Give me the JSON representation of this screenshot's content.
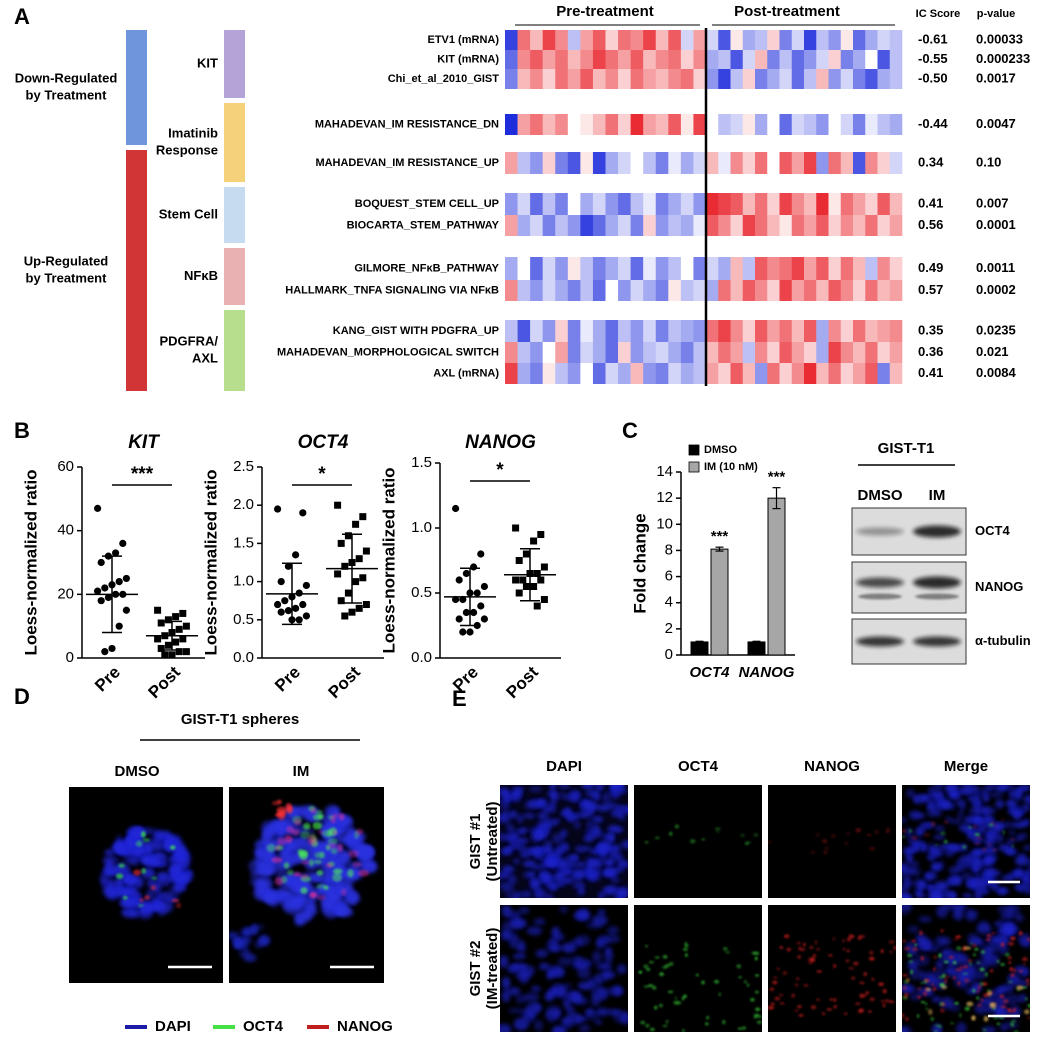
{
  "panel_labels": [
    "A",
    "B",
    "C",
    "D",
    "E"
  ],
  "heatmap": {
    "groups": [
      {
        "label": [
          "Down-Regulated",
          "by Treatment"
        ],
        "color": "#6f95dc"
      },
      {
        "label": [
          "Up-Regulated",
          "by Treatment"
        ],
        "color": "#d23535"
      }
    ],
    "categories": [
      {
        "label": [
          "KIT"
        ],
        "color": "#b3a3d6"
      },
      {
        "label": [
          "Imatinib",
          "Response"
        ],
        "color": "#f5d27a"
      },
      {
        "label": [
          "Stem Cell"
        ],
        "color": "#c6dbf0"
      },
      {
        "label": [
          "NFκB"
        ],
        "color": "#e9b1b1"
      },
      {
        "label": [
          "PDGFRA/",
          "AXL"
        ],
        "color": "#b7de8c"
      }
    ],
    "columns": [
      "Pre-treatment",
      "Post-treatment"
    ],
    "headers": [
      "IC Score",
      "p-value"
    ],
    "rows": [
      {
        "name": "ETV1 (mRNA)",
        "ic": "-0.61",
        "p": "0.00033",
        "values": [
          -0.9,
          0.6,
          0.3,
          0.8,
          0.5,
          -0.3,
          0.4,
          0.7,
          0.2,
          0.6,
          0.5,
          0.8,
          0.3,
          0.7,
          -0.2,
          0.4,
          -0.2,
          -0.8,
          0.1,
          -0.4,
          -0.3,
          0.2,
          -0.6,
          -0.2,
          -0.9,
          -0.3,
          -0.5,
          0.1,
          -0.7,
          -0.4,
          -0.2,
          -0.3
        ]
      },
      {
        "name": "KIT (mRNA)",
        "ic": "-0.55",
        "p": "0.000233",
        "values": [
          -0.7,
          0.5,
          0.7,
          0.4,
          0.6,
          0.3,
          0.5,
          0.8,
          0.6,
          0.4,
          0.7,
          0.3,
          0.5,
          0.6,
          0.2,
          0.5,
          -0.4,
          -0.3,
          -0.8,
          -0.2,
          0.3,
          -0.6,
          -0.3,
          -0.7,
          -0.5,
          -0.2,
          0.2,
          -0.6,
          -0.4,
          0.0,
          -0.8,
          -0.3
        ]
      },
      {
        "name": "Chi_et_al_2010_GIST",
        "ic": "-0.50",
        "p": "0.0017",
        "values": [
          -0.6,
          0.3,
          0.5,
          0.2,
          0.6,
          0.4,
          0.7,
          0.3,
          0.5,
          0.2,
          0.6,
          0.4,
          0.3,
          0.5,
          0.6,
          0.2,
          -0.5,
          -0.9,
          -0.3,
          0.2,
          -0.6,
          -0.4,
          -0.2,
          -0.7,
          -0.3,
          0.3,
          -0.5,
          -0.2,
          -0.6,
          -0.8,
          -0.4,
          -0.3
        ]
      },
      {
        "name": "MAHADEVAN_IM RESISTANCE_DN",
        "ic": "-0.44",
        "p": "0.0047",
        "values": [
          -1.0,
          0.4,
          0.6,
          0.3,
          0.5,
          0.0,
          0.1,
          0.3,
          0.6,
          0.2,
          0.9,
          0.4,
          0.3,
          0.7,
          0.1,
          0.8,
          0.0,
          -0.3,
          -0.2,
          0.1,
          -0.4,
          0.0,
          -0.7,
          -0.2,
          -0.3,
          -0.5,
          0.0,
          -0.2,
          -0.6,
          -0.1,
          -0.3,
          -0.4
        ]
      },
      {
        "name": "MAHADEVAN_IM RESISTANCE_UP",
        "ic": "0.34",
        "p": "0.10",
        "values": [
          0.4,
          -0.3,
          -0.5,
          0.2,
          -0.6,
          -0.8,
          0.1,
          -0.9,
          -0.4,
          -0.2,
          0.0,
          -0.3,
          -0.6,
          -0.1,
          -0.4,
          -0.2,
          0.3,
          -0.1,
          0.5,
          0.2,
          0.6,
          0.0,
          0.7,
          0.4,
          0.8,
          -0.5,
          0.6,
          0.3,
          -0.8,
          0.5,
          0.2,
          -0.2
        ]
      },
      {
        "name": "BOQUEST_STEM CELL_UP",
        "ic": "0.41",
        "p": "0.007",
        "values": [
          -0.5,
          -0.2,
          -0.7,
          -0.3,
          -0.6,
          0.0,
          -0.4,
          -0.2,
          -0.5,
          -0.7,
          -0.3,
          -0.1,
          -0.6,
          -0.4,
          -0.2,
          -0.5,
          0.9,
          0.8,
          0.7,
          0.3,
          0.6,
          0.2,
          0.8,
          0.5,
          0.3,
          0.9,
          0.1,
          0.6,
          0.4,
          0.2,
          0.7,
          0.3
        ]
      },
      {
        "name": "BIOCARTA_STEM_PATHWAY",
        "ic": "0.56",
        "p": "0.0001",
        "values": [
          0.4,
          -0.4,
          -0.2,
          -0.6,
          -0.3,
          -0.5,
          -0.9,
          -0.7,
          -0.4,
          -0.2,
          -0.6,
          0.2,
          -0.5,
          -0.3,
          -0.4,
          -0.1,
          0.7,
          0.5,
          0.2,
          0.8,
          0.6,
          0.3,
          0.1,
          0.6,
          0.4,
          0.7,
          0.2,
          0.5,
          0.3,
          0.6,
          0.2,
          0.4
        ]
      },
      {
        "name": "GILMORE_NFκB_PATHWAY",
        "ic": "0.49",
        "p": "0.0011",
        "values": [
          -0.4,
          0.0,
          -0.7,
          -0.2,
          -0.5,
          0.1,
          -0.3,
          -0.6,
          -0.4,
          -0.2,
          -0.7,
          -0.1,
          -0.5,
          -0.3,
          0.0,
          -0.6,
          -0.2,
          -0.4,
          0.3,
          -0.3,
          0.7,
          0.5,
          0.6,
          0.8,
          0.4,
          0.7,
          0.2,
          0.6,
          0.3,
          -0.3,
          0.5,
          0.2
        ]
      },
      {
        "name": "HALLMARK_TNFA SIGNALING VIA NFκB",
        "ic": "0.57",
        "p": "0.0002",
        "values": [
          0.5,
          -0.3,
          -0.5,
          -0.2,
          -0.4,
          -0.6,
          -0.3,
          -0.7,
          0.0,
          -0.5,
          -0.2,
          -0.4,
          -0.6,
          0.1,
          -0.3,
          -0.2,
          -0.4,
          0.6,
          0.3,
          0.7,
          0.5,
          0.2,
          0.8,
          0.4,
          0.6,
          0.3,
          0.7,
          0.5,
          0.2,
          0.6,
          0.3,
          0.4
        ]
      },
      {
        "name": "KANG_GIST WITH PDGFRA_UP",
        "ic": "0.35",
        "p": "0.0235",
        "values": [
          -0.3,
          -0.8,
          -0.2,
          -0.5,
          0.2,
          -0.6,
          -0.1,
          -0.4,
          -0.7,
          -0.3,
          -0.5,
          -0.2,
          -0.6,
          -0.3,
          -0.4,
          -0.5,
          0.6,
          0.8,
          0.5,
          0.2,
          0.7,
          0.4,
          0.6,
          0.3,
          0.7,
          -0.4,
          0.5,
          0.2,
          0.6,
          0.3,
          0.4,
          0.5
        ]
      },
      {
        "name": "MAHADEVAN_MORPHOLOGICAL SWITCH",
        "ic": "0.36",
        "p": "0.021",
        "values": [
          0.5,
          -0.3,
          -0.5,
          0.0,
          0.4,
          -0.6,
          -0.2,
          -0.4,
          -0.7,
          0.2,
          -0.5,
          -0.3,
          -0.2,
          -0.4,
          -0.6,
          -0.3,
          0.3,
          0.6,
          0.4,
          -0.3,
          0.5,
          0.2,
          0.7,
          0.4,
          0.2,
          -0.4,
          0.8,
          0.5,
          0.3,
          0.6,
          0.2,
          0.4
        ]
      },
      {
        "name": "AXL (mRNA)",
        "ic": "0.41",
        "p": "0.0084",
        "values": [
          0.8,
          -0.4,
          -0.6,
          0.1,
          -0.3,
          -0.5,
          0.0,
          -0.7,
          -0.2,
          -0.4,
          0.3,
          -0.5,
          -0.6,
          -0.2,
          -0.4,
          -0.3,
          0.4,
          0.2,
          0.7,
          0.3,
          -0.5,
          0.6,
          0.2,
          0.5,
          0.9,
          0.3,
          0.6,
          0.2,
          0.4,
          0.7,
          -0.6,
          0.3
        ]
      }
    ]
  },
  "chart_data": [
    {
      "type": "dot",
      "title": "KIT",
      "ylabel": "Loess-normalized ratio",
      "ylim": [
        0,
        60
      ],
      "yticks": [
        0,
        20,
        40,
        60
      ],
      "significance": "***",
      "series": [
        {
          "name": "Pre",
          "marker": "circle",
          "color": "#000000",
          "values": [
            47,
            36,
            33,
            32,
            30,
            25,
            24,
            23,
            22,
            21,
            20,
            20,
            19,
            18,
            15,
            10,
            3,
            2
          ],
          "mean": 20,
          "sd": 12
        },
        {
          "name": "Post",
          "marker": "square",
          "color": "#000000",
          "values": [
            15,
            14,
            13,
            12,
            11,
            10,
            9,
            8,
            7,
            6,
            6,
            5,
            4,
            3,
            2,
            2,
            1,
            1
          ],
          "mean": 7,
          "sd": 4.5
        }
      ]
    },
    {
      "type": "dot",
      "title": "OCT4",
      "ylabel": "Loess-normalized ratio",
      "ylim": [
        0,
        2.5
      ],
      "yticks": [
        {
          "value": 0,
          "label": "0.0"
        },
        0.5,
        {
          "value": 1,
          "label": "1.0"
        },
        1.5,
        {
          "value": 2,
          "label": "2.0"
        },
        2.5
      ],
      "significance": "*",
      "series": [
        {
          "name": "Pre",
          "marker": "circle",
          "color": "#000000",
          "values": [
            1.95,
            1.9,
            1.35,
            1.2,
            1.0,
            0.95,
            0.85,
            0.8,
            0.75,
            0.7,
            0.7,
            0.65,
            0.62,
            0.6,
            0.55,
            0.5,
            0.5
          ],
          "mean": 0.84,
          "sd": 0.4
        },
        {
          "name": "Post",
          "marker": "square",
          "color": "#000000",
          "values": [
            2.0,
            1.85,
            1.75,
            1.6,
            1.5,
            1.4,
            1.3,
            1.25,
            1.2,
            1.1,
            1.05,
            1.0,
            0.85,
            0.75,
            0.7,
            0.65,
            0.6,
            0.55
          ],
          "mean": 1.17,
          "sd": 0.45
        }
      ]
    },
    {
      "type": "dot",
      "title": "NANOG",
      "ylabel": "Loess-normalized ratio",
      "ylim": [
        0,
        1.5
      ],
      "yticks": [
        {
          "value": 0,
          "label": "0.0"
        },
        0.5,
        {
          "value": 1,
          "label": "1.0"
        },
        1.5
      ],
      "significance": "*",
      "series": [
        {
          "name": "Pre",
          "marker": "circle",
          "color": "#000000",
          "values": [
            1.15,
            0.8,
            0.7,
            0.65,
            0.6,
            0.55,
            0.5,
            0.5,
            0.45,
            0.45,
            0.4,
            0.35,
            0.35,
            0.3,
            0.3,
            0.25,
            0.2,
            0.2
          ],
          "mean": 0.47,
          "sd": 0.22
        },
        {
          "name": "Post",
          "marker": "square",
          "color": "#000000",
          "values": [
            1.0,
            0.95,
            0.9,
            0.8,
            0.75,
            0.7,
            0.65,
            0.65,
            0.6,
            0.6,
            0.6,
            0.55,
            0.55,
            0.5,
            0.45,
            0.4
          ],
          "mean": 0.64,
          "sd": 0.2
        }
      ]
    },
    {
      "type": "bar",
      "ylabel": "Fold change",
      "categories": [
        "OCT4",
        "NANOG"
      ],
      "ylim": [
        0,
        14
      ],
      "yticks": [
        0,
        2,
        4,
        6,
        8,
        10,
        12,
        14
      ],
      "series": [
        {
          "name": "DMSO",
          "color": "#000000",
          "values": [
            1,
            1
          ],
          "errors": [
            0.05,
            0.05
          ]
        },
        {
          "name": "IM (10 nM)",
          "color": "#a6a6a6",
          "values": [
            8.1,
            12.0
          ],
          "errors": [
            0.15,
            0.8
          ],
          "annotations": [
            "***",
            "***"
          ]
        }
      ]
    }
  ],
  "blot": {
    "title": "GIST-T1",
    "lanes": [
      "DMSO",
      "IM"
    ],
    "bands": [
      "OCT4",
      "NANOG",
      "α-tubulin"
    ]
  },
  "spheres": {
    "title": "GIST-T1 spheres",
    "conditions": [
      "DMSO",
      "IM"
    ],
    "legend": [
      {
        "name": "DAPI",
        "color": "#1b1ba8"
      },
      {
        "name": "OCT4",
        "color": "#44e044"
      },
      {
        "name": "NANOG",
        "color": "#c01f1f"
      }
    ]
  },
  "tissue": {
    "channels": [
      "DAPI",
      "OCT4",
      "NANOG",
      "Merge"
    ],
    "samples": [
      {
        "name": "GIST #1",
        "condition": "(Untreated)"
      },
      {
        "name": "GIST #2",
        "condition": "(IM-treated)"
      }
    ]
  }
}
